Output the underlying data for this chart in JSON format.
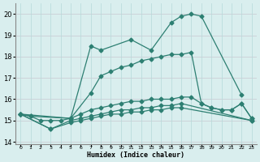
{
  "title": "",
  "xlabel": "Humidex (Indice chaleur)",
  "x": [
    0,
    1,
    2,
    3,
    4,
    5,
    6,
    7,
    8,
    9,
    10,
    11,
    12,
    13,
    14,
    15,
    16,
    17,
    18,
    19,
    20,
    21,
    22,
    23
  ],
  "line1_x": [
    0,
    1,
    5,
    7,
    8,
    11,
    13,
    15,
    16,
    17,
    18,
    22
  ],
  "line1_y": [
    15.3,
    15.2,
    15.1,
    18.5,
    18.3,
    18.8,
    18.3,
    19.6,
    19.9,
    20.0,
    19.9,
    16.2
  ],
  "line2_x": [
    0,
    5,
    7,
    8,
    9,
    10,
    11,
    12,
    13,
    14,
    15,
    16,
    17,
    18,
    19,
    20,
    21,
    22,
    23
  ],
  "line2_y": [
    15.3,
    15.1,
    16.3,
    17.1,
    17.3,
    17.5,
    17.6,
    17.8,
    17.9,
    18.0,
    18.1,
    18.1,
    18.2,
    15.8,
    15.6,
    15.5,
    15.5,
    15.8,
    15.1
  ],
  "line3_x": [
    0,
    1,
    2,
    3,
    4,
    5,
    6,
    7,
    8,
    9,
    10,
    11,
    12,
    13,
    14,
    15,
    16,
    17,
    18,
    19,
    20,
    21,
    22,
    23
  ],
  "line3_y": [
    15.3,
    15.2,
    15.0,
    15.0,
    15.0,
    15.1,
    15.3,
    15.5,
    15.6,
    15.7,
    15.8,
    15.9,
    15.9,
    16.0,
    16.0,
    16.0,
    16.1,
    16.1,
    15.8,
    15.6,
    15.5,
    15.5,
    15.8,
    15.1
  ],
  "line4_x": [
    0,
    3,
    5,
    6,
    7,
    8,
    9,
    10,
    11,
    12,
    13,
    14,
    15,
    16,
    23
  ],
  "line4_y": [
    15.3,
    14.6,
    15.0,
    15.1,
    15.2,
    15.3,
    15.4,
    15.5,
    15.5,
    15.6,
    15.6,
    15.7,
    15.7,
    15.8,
    15.0
  ],
  "line5_x": [
    0,
    3,
    5,
    6,
    7,
    8,
    9,
    10,
    11,
    12,
    13,
    14,
    15,
    16,
    23
  ],
  "line5_y": [
    15.3,
    14.6,
    14.9,
    15.0,
    15.1,
    15.2,
    15.3,
    15.3,
    15.4,
    15.4,
    15.5,
    15.5,
    15.6,
    15.6,
    15.0
  ],
  "color": "#2d7f72",
  "bg_color": "#d9eeee",
  "grid_color_v": "#b5d9d9",
  "grid_color_h": "#c8c8c8",
  "ylim": [
    13.9,
    20.5
  ],
  "yticks": [
    14,
    15,
    16,
    17,
    18,
    19,
    20
  ],
  "xlim": [
    -0.5,
    23.5
  ]
}
